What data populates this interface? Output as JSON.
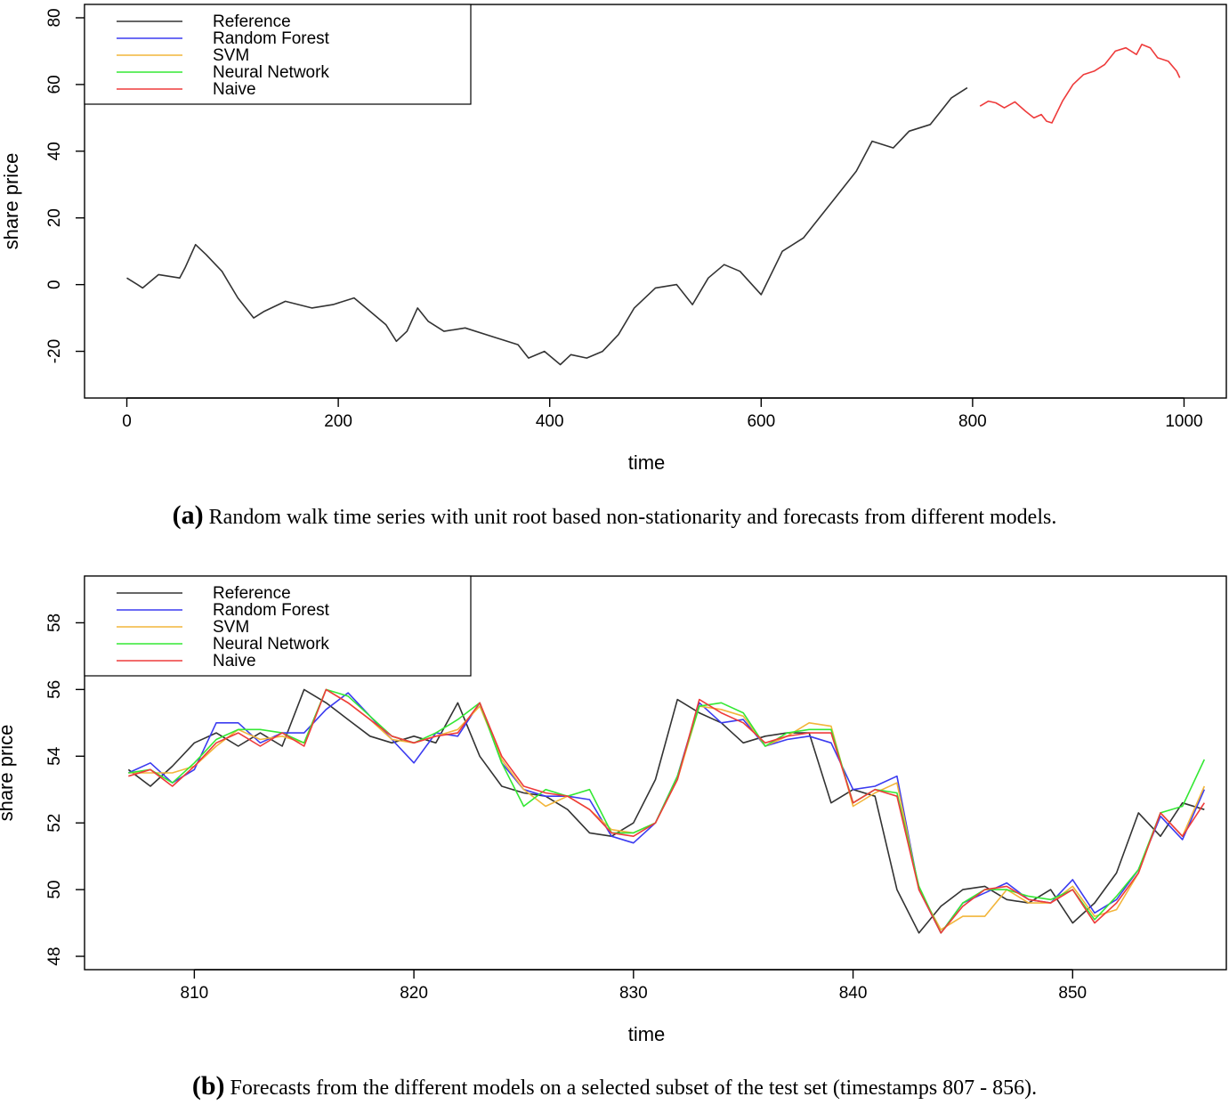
{
  "captions": {
    "a_tag": "(a)",
    "a_text": "Random walk time series with unit root based non-stationarity and forecasts from different models.",
    "b_tag": "(b)",
    "b_text": "Forecasts from the different models on a selected subset of the test set (timestamps 807 - 856)."
  },
  "colors": {
    "Reference": "#333333",
    "Random Forest": "#3b3bf0",
    "SVM": "#f2b53a",
    "Neural Network": "#34e834",
    "Naive": "#ee3b3b"
  },
  "chart_data": [
    {
      "type": "line",
      "title": "",
      "xlabel": "time",
      "ylabel": "share price",
      "xlim": [
        -40,
        1040
      ],
      "ylim": [
        -34,
        84
      ],
      "xticks": [
        0,
        200,
        400,
        600,
        800,
        1000
      ],
      "yticks": [
        -20,
        0,
        20,
        40,
        60,
        80
      ],
      "legend": {
        "position": "top-left",
        "entries": [
          "Reference",
          "Random Forest",
          "SVM",
          "Neural Network",
          "Naive"
        ]
      },
      "series": [
        {
          "name": "Reference",
          "x": [
            0,
            10,
            15,
            30,
            50,
            55,
            65,
            75,
            90,
            105,
            120,
            130,
            150,
            175,
            195,
            215,
            230,
            245,
            255,
            265,
            275,
            285,
            300,
            320,
            350,
            370,
            380,
            395,
            410,
            420,
            435,
            450,
            465,
            480,
            500,
            520,
            535,
            550,
            565,
            580,
            600,
            620,
            640,
            655,
            670,
            690,
            705,
            725,
            740,
            760,
            780,
            795
          ],
          "y": [
            2,
            0,
            -1,
            3,
            2,
            5,
            12,
            9,
            4,
            -4,
            -10,
            -8,
            -5,
            -7,
            -6,
            -4,
            -8,
            -12,
            -17,
            -14,
            -7,
            -11,
            -14,
            -13,
            -16,
            -18,
            -22,
            -20,
            -24,
            -21,
            -22,
            -20,
            -15,
            -7,
            -1,
            0,
            -6,
            2,
            6,
            4,
            -3,
            10,
            14,
            20,
            26,
            34,
            43,
            41,
            46,
            48,
            56,
            59
          ]
        },
        {
          "name": "Naive",
          "x": [
            807,
            815,
            822,
            830,
            840,
            850,
            858,
            865,
            870,
            875,
            885,
            895,
            905,
            915,
            925,
            935,
            945,
            955,
            960,
            968,
            975,
            985,
            993,
            996
          ],
          "y": [
            53.5,
            55,
            54.5,
            53,
            54.8,
            52,
            50,
            51,
            49,
            48.5,
            55,
            60,
            63,
            64,
            66,
            70,
            71,
            69,
            72,
            71,
            68,
            67,
            64,
            62
          ]
        }
      ]
    },
    {
      "type": "line",
      "title": "",
      "xlabel": "time",
      "ylabel": "share price",
      "xlim": [
        805,
        857
      ],
      "ylim": [
        47.6,
        59.4
      ],
      "xticks": [
        810,
        820,
        830,
        840,
        850
      ],
      "yticks": [
        48,
        50,
        52,
        54,
        56,
        58
      ],
      "legend": {
        "position": "top-left",
        "entries": [
          "Reference",
          "Random Forest",
          "SVM",
          "Neural Network",
          "Naive"
        ]
      },
      "x": [
        807,
        808,
        809,
        810,
        811,
        812,
        813,
        814,
        815,
        816,
        817,
        818,
        819,
        820,
        821,
        822,
        823,
        824,
        825,
        826,
        827,
        828,
        829,
        830,
        831,
        832,
        833,
        834,
        835,
        836,
        837,
        838,
        839,
        840,
        841,
        842,
        843,
        844,
        845,
        846,
        847,
        848,
        849,
        850,
        851,
        852,
        853,
        854,
        855,
        856
      ],
      "series": [
        {
          "name": "Reference",
          "values": [
            53.6,
            53.1,
            53.7,
            54.4,
            54.7,
            54.3,
            54.7,
            54.3,
            56.0,
            55.6,
            55.1,
            54.6,
            54.4,
            54.6,
            54.4,
            55.6,
            54.0,
            53.1,
            52.9,
            52.8,
            52.4,
            51.7,
            51.6,
            52.0,
            53.3,
            55.7,
            55.3,
            55.0,
            54.4,
            54.6,
            54.7,
            54.7,
            52.6,
            53.0,
            52.8,
            50.0,
            48.7,
            49.5,
            50.0,
            50.1,
            49.7,
            49.6,
            50.0,
            49.0,
            49.6,
            50.5,
            52.3,
            51.6,
            52.6,
            52.4
          ]
        },
        {
          "name": "Random Forest",
          "values": [
            53.5,
            53.8,
            53.2,
            53.6,
            55.0,
            55.0,
            54.4,
            54.7,
            54.7,
            55.4,
            55.9,
            55.2,
            54.5,
            53.8,
            54.7,
            54.6,
            55.6,
            53.8,
            53.0,
            52.8,
            52.8,
            52.7,
            51.6,
            51.4,
            52.0,
            53.4,
            55.6,
            55.0,
            55.1,
            54.3,
            54.5,
            54.6,
            54.4,
            53.0,
            53.1,
            53.4,
            50.0,
            48.7,
            49.6,
            49.9,
            50.2,
            49.7,
            49.6,
            50.3,
            49.3,
            49.7,
            50.6,
            52.2,
            51.5,
            53.0
          ]
        },
        {
          "name": "SVM",
          "values": [
            53.5,
            53.5,
            53.5,
            53.7,
            54.3,
            54.8,
            54.5,
            54.6,
            54.4,
            56.0,
            55.6,
            55.1,
            54.5,
            54.4,
            54.6,
            54.8,
            55.5,
            53.9,
            53.0,
            52.5,
            52.8,
            52.4,
            51.8,
            51.7,
            52.0,
            53.3,
            55.5,
            55.4,
            55.2,
            54.3,
            54.6,
            55.0,
            54.9,
            52.5,
            52.9,
            53.2,
            50.0,
            48.8,
            49.2,
            49.2,
            50.0,
            49.6,
            49.6,
            50.1,
            49.2,
            49.4,
            50.5,
            52.3,
            51.6,
            53.1
          ]
        },
        {
          "name": "Neural Network",
          "values": [
            53.5,
            53.6,
            53.2,
            53.8,
            54.5,
            54.8,
            54.8,
            54.7,
            54.4,
            56.0,
            55.8,
            55.2,
            54.6,
            54.4,
            54.7,
            55.1,
            55.6,
            53.8,
            52.5,
            53.0,
            52.8,
            53.0,
            51.7,
            51.7,
            52.0,
            53.4,
            55.5,
            55.6,
            55.3,
            54.3,
            54.7,
            54.8,
            54.8,
            52.6,
            53.0,
            52.9,
            50.1,
            48.7,
            49.6,
            50.0,
            50.0,
            49.8,
            49.7,
            50.0,
            49.1,
            49.8,
            50.6,
            52.3,
            52.5,
            53.9
          ]
        },
        {
          "name": "Naive",
          "values": [
            53.4,
            53.6,
            53.1,
            53.7,
            54.4,
            54.7,
            54.3,
            54.7,
            54.3,
            56.0,
            55.6,
            55.1,
            54.6,
            54.4,
            54.6,
            54.7,
            55.6,
            54.0,
            53.1,
            52.9,
            52.8,
            52.4,
            51.7,
            51.6,
            52.0,
            53.3,
            55.7,
            55.3,
            55.0,
            54.4,
            54.6,
            54.7,
            54.7,
            52.6,
            53.0,
            52.8,
            50.0,
            48.7,
            49.5,
            50.0,
            50.1,
            49.7,
            49.6,
            50.0,
            49.0,
            49.6,
            50.5,
            52.3,
            51.6,
            52.6
          ]
        }
      ]
    }
  ]
}
